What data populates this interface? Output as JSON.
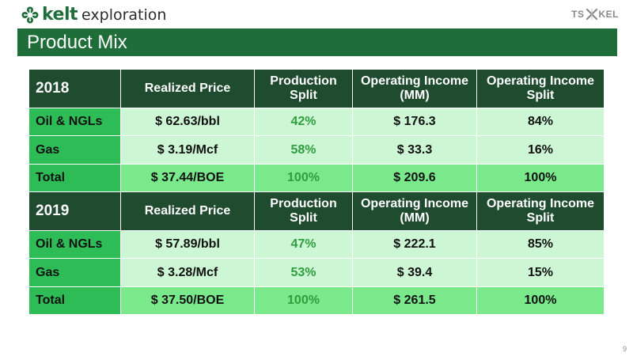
{
  "header": {
    "brand": "kelt",
    "brand_sub": "exploration",
    "tsx_left": "TS",
    "tsx_right": "KEL",
    "title": "Product Mix"
  },
  "colors": {
    "brand_green": "#1f6e3a",
    "header_row": "#1f4b2e",
    "label_cell": "#2ebc57",
    "data_cell": "#cdf7d4",
    "total_cell": "#79e98c",
    "pct_text": "#2e9e3e"
  },
  "icons": {
    "logo": "clover-leaf-icon",
    "tsx": "crossed-star-icon"
  },
  "tables": [
    {
      "year": "2018",
      "columns": [
        "Realized Price",
        "Production Split",
        "Operating Income (MM)",
        "Operating Income Split"
      ],
      "rows": [
        {
          "label": "Oil & NGLs",
          "price": "$ 62.63/bbl",
          "split": "42%",
          "income": "$ 176.3",
          "income_split": "84%"
        },
        {
          "label": "Gas",
          "price": "$ 3.19/Mcf",
          "split": "58%",
          "income": "$ 33.3",
          "income_split": "16%"
        },
        {
          "label": "Total",
          "price": "$ 37.44/BOE",
          "split": "100%",
          "income": "$ 209.6",
          "income_split": "100%"
        }
      ]
    },
    {
      "year": "2019",
      "columns": [
        "Realized Price",
        "Production Split",
        "Operating Income (MM)",
        "Operating Income Split"
      ],
      "rows": [
        {
          "label": "Oil & NGLs",
          "price": "$ 57.89/bbl",
          "split": "47%",
          "income": "$ 222.1",
          "income_split": "85%"
        },
        {
          "label": "Gas",
          "price": "$ 3.28/Mcf",
          "split": "53%",
          "income": "$ 39.4",
          "income_split": "15%"
        },
        {
          "label": "Total",
          "price": "$ 37.50/BOE",
          "split": "100%",
          "income": "$ 261.5",
          "income_split": "100%"
        }
      ]
    }
  ],
  "footer": {
    "page_number": "9"
  }
}
